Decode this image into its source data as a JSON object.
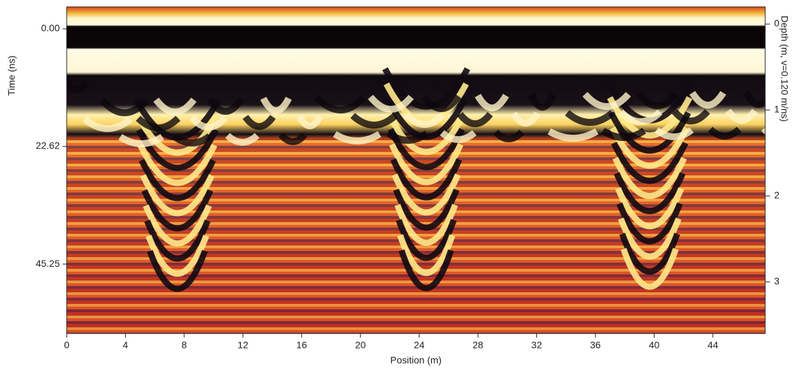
{
  "chart_data": {
    "type": "radargram",
    "x_label": "Position (m)",
    "y_label": "Time (ns)",
    "y2_label": "Depth (m, v=0.120 m/ns)",
    "xlim": [
      0,
      47.56
    ],
    "xticks": [
      0,
      4,
      8,
      12,
      16,
      20,
      24,
      28,
      32,
      36,
      40,
      44
    ],
    "ylim": [
      -4.23,
      58.6
    ],
    "yticks": [
      {
        "value": 0,
        "label": "0.00"
      },
      22.62,
      45.25
    ],
    "y2lim": [
      -0.2,
      3.6
    ],
    "y2ticks": [
      0,
      1,
      2,
      3
    ]
  }
}
